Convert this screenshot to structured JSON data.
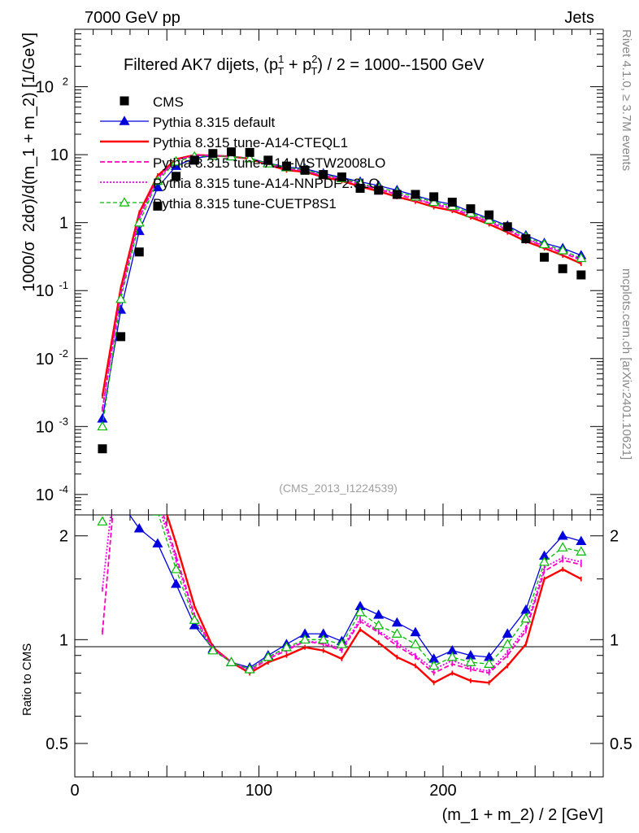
{
  "header": {
    "energy_label": "7000 GeV pp",
    "process_label": "Jets",
    "side_rivet": "Rivet 4.1.0, ≥ 3.7M events",
    "side_mcplots": "mcplots.cern.ch [arXiv:2401.10621]",
    "analysis_id": "(CMS_2013_I1224539)"
  },
  "chart_data": {
    "type": "scatter",
    "title": "Filtered AK7 dijets, (p_T^1 + p_T^2) / 2 = 1000--1500 GeV",
    "title_parts": {
      "prefix": "Filtered AK7 dijets, (p",
      "sub1": "T",
      "sup1": "1",
      "mid": " + p",
      "sub2": "T",
      "sup2": "2",
      "suffix": ") / 2 = 1000--1500 GeV"
    },
    "xlabel": "(m_1 + m_2) / 2 [GeV]",
    "ylabel": "1000/σ  2dσ)/d(m_1 + m_2) [1/GeV]",
    "ratio_ylabel": "Ratio to CMS",
    "xlim": [
      0,
      287
    ],
    "ylim": [
      5e-05,
      700
    ],
    "ratio_ylim": [
      0.4,
      2.3
    ],
    "x_ticks": [
      {
        "v": 0,
        "label": "0"
      },
      {
        "v": 100,
        "label": "100"
      },
      {
        "v": 200,
        "label": "200"
      }
    ],
    "y_ticks": [
      {
        "exp": -4,
        "label": "10",
        "sup": "-4"
      },
      {
        "exp": -3,
        "label": "10",
        "sup": "-3"
      },
      {
        "exp": -2,
        "label": "10",
        "sup": "-2"
      },
      {
        "exp": -1,
        "label": "10",
        "sup": "-1"
      },
      {
        "exp": 0,
        "label": "1",
        "sup": ""
      },
      {
        "exp": 1,
        "label": "10",
        "sup": ""
      },
      {
        "exp": 2,
        "label": "10",
        "sup": "2"
      }
    ],
    "ratio_ticks": [
      {
        "v": 0.5,
        "label": "0.5"
      },
      {
        "v": 1,
        "label": "1"
      },
      {
        "v": 2,
        "label": "2"
      }
    ],
    "x": [
      15,
      25,
      35,
      45,
      55,
      65,
      75,
      85,
      95,
      105,
      115,
      125,
      135,
      145,
      155,
      165,
      175,
      185,
      195,
      205,
      215,
      225,
      235,
      245,
      255,
      265,
      275
    ],
    "cms": [
      0.00047,
      0.021,
      0.37,
      1.75,
      4.8,
      8.3,
      10.4,
      11.0,
      10.8,
      8.3,
      6.8,
      5.9,
      5.1,
      4.7,
      3.2,
      3.0,
      2.6,
      2.6,
      2.4,
      2.0,
      1.6,
      1.3,
      0.87,
      0.58,
      0.31,
      0.21,
      0.17
    ],
    "series": [
      {
        "name": "Pythia 8.315 default",
        "color": "#0000dd",
        "dash": "",
        "marker": "triangle",
        "width": 1.3,
        "values": [
          0.0013,
          0.052,
          0.75,
          3.3,
          6.8,
          8.9,
          9.6,
          9.4,
          8.9,
          7.5,
          6.6,
          6.2,
          5.3,
          4.6,
          4.0,
          3.5,
          3.0,
          2.5,
          2.1,
          1.85,
          1.45,
          1.15,
          0.9,
          0.65,
          0.5,
          0.42,
          0.33
        ],
        "ratio": [
          2.9,
          2.5,
          2.1,
          1.9,
          1.45,
          1.1,
          0.94,
          0.86,
          0.83,
          0.9,
          0.97,
          1.04,
          1.04,
          0.99,
          1.25,
          1.18,
          1.12,
          1.05,
          0.88,
          0.93,
          0.9,
          0.89,
          1.04,
          1.22,
          1.75,
          2.0,
          1.93
        ]
      },
      {
        "name": "Pythia 8.315 tune-A14-CTEQL1",
        "color": "#ff0000",
        "dash": "",
        "marker": "tick",
        "width": 2.4,
        "values": [
          0.0028,
          0.11,
          1.4,
          4.9,
          8.6,
          9.9,
          9.7,
          9.4,
          8.7,
          7.1,
          5.9,
          5.6,
          4.7,
          4.1,
          3.4,
          2.9,
          2.4,
          2.05,
          1.7,
          1.5,
          1.2,
          0.95,
          0.72,
          0.53,
          0.42,
          0.33,
          0.25
        ],
        "ratio": [
          6.0,
          5.3,
          3.8,
          2.8,
          1.9,
          1.25,
          0.95,
          0.86,
          0.8,
          0.86,
          0.9,
          0.95,
          0.93,
          0.88,
          1.07,
          0.98,
          0.89,
          0.84,
          0.75,
          0.8,
          0.76,
          0.75,
          0.84,
          0.97,
          1.5,
          1.6,
          1.5
        ]
      },
      {
        "name": "Pythia 8.315 tune-A14-MSTW2008LO",
        "color": "#ff00bb",
        "dash": "6,3",
        "marker": "tick",
        "width": 1.8,
        "values": [
          0.0018,
          0.09,
          1.2,
          4.5,
          8.3,
          9.8,
          9.7,
          9.4,
          8.8,
          7.3,
          6.2,
          5.8,
          4.9,
          4.4,
          3.6,
          3.1,
          2.6,
          2.2,
          1.85,
          1.6,
          1.28,
          1.02,
          0.78,
          0.57,
          0.45,
          0.36,
          0.28
        ],
        "ratio": [
          1.05,
          4.3,
          3.2,
          2.6,
          1.75,
          1.18,
          0.94,
          0.86,
          0.81,
          0.88,
          0.93,
          0.99,
          0.97,
          0.93,
          1.13,
          1.05,
          0.96,
          0.89,
          0.8,
          0.85,
          0.82,
          0.8,
          0.9,
          1.06,
          1.58,
          1.7,
          1.65
        ]
      },
      {
        "name": "Pythia 8.315 tune-A14-NNPDF2.3LO",
        "color": "#ee00ee",
        "dash": "2,2",
        "marker": "tick",
        "width": 1.8,
        "values": [
          0.0018,
          0.088,
          1.15,
          4.4,
          8.2,
          9.7,
          9.7,
          9.4,
          8.8,
          7.3,
          6.3,
          5.8,
          5.0,
          4.4,
          3.7,
          3.15,
          2.65,
          2.25,
          1.9,
          1.65,
          1.3,
          1.05,
          0.8,
          0.58,
          0.46,
          0.37,
          0.29
        ],
        "ratio": [
          1.4,
          4.2,
          3.1,
          2.5,
          1.7,
          1.16,
          0.94,
          0.86,
          0.82,
          0.89,
          0.94,
          0.99,
          0.98,
          0.94,
          1.15,
          1.06,
          0.98,
          0.9,
          0.82,
          0.87,
          0.83,
          0.81,
          0.92,
          1.08,
          1.62,
          1.73,
          1.68
        ]
      },
      {
        "name": "Pythia 8.315 tune-CUETP8S1",
        "color": "#00bb00",
        "dash": "5,3",
        "marker": "triangle-open",
        "width": 1.3,
        "values": [
          0.001,
          0.075,
          1.0,
          4.1,
          7.9,
          9.4,
          9.6,
          9.4,
          8.8,
          7.4,
          6.5,
          6.0,
          5.1,
          4.5,
          3.8,
          3.3,
          2.8,
          2.4,
          2.0,
          1.75,
          1.38,
          1.1,
          0.85,
          0.62,
          0.48,
          0.39,
          0.3
        ],
        "ratio": [
          2.2,
          3.5,
          2.9,
          2.35,
          1.6,
          1.14,
          0.93,
          0.86,
          0.82,
          0.89,
          0.95,
          1.0,
          1.0,
          0.97,
          1.2,
          1.1,
          1.04,
          0.97,
          0.84,
          0.89,
          0.86,
          0.85,
          0.97,
          1.15,
          1.68,
          1.85,
          1.8
        ]
      }
    ],
    "legend": [
      {
        "name": "CMS",
        "kind": "data"
      },
      {
        "name": "Pythia 8.315 default",
        "kind": "mc",
        "index": 0
      },
      {
        "name": "Pythia 8.315 tune-A14-CTEQL1",
        "kind": "mc",
        "index": 1
      },
      {
        "name": "Pythia 8.315 tune-A14-MSTW2008LO",
        "kind": "mc",
        "index": 2
      },
      {
        "name": "Pythia 8.315 tune-A14-NNPDF2.3LO",
        "kind": "mc",
        "index": 3
      },
      {
        "name": "Pythia 8.315 tune-CUETP8S1",
        "kind": "mc",
        "index": 4
      }
    ],
    "legend_position": "top-left"
  }
}
